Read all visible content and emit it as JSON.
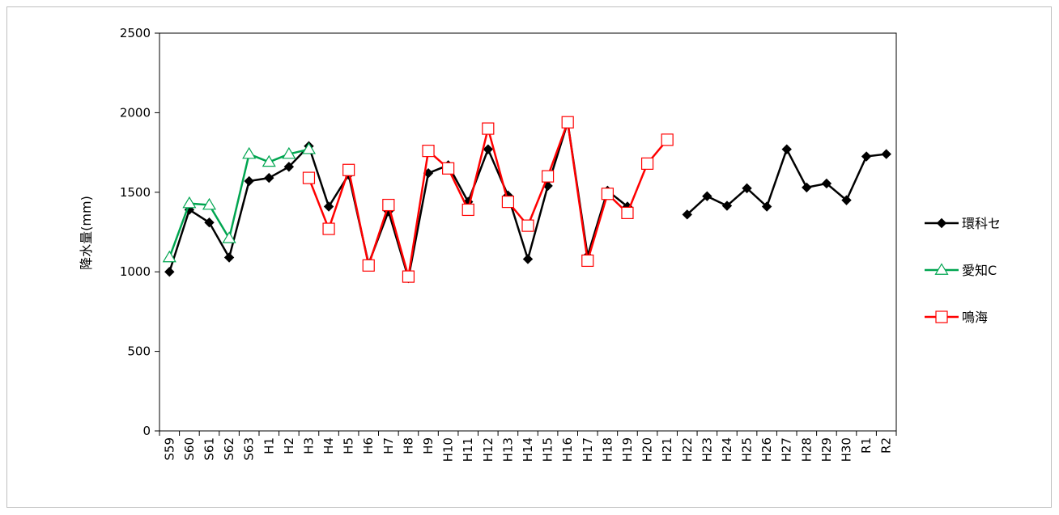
{
  "chart_data": {
    "type": "line",
    "title": "",
    "ylabel": "降水量(mm)",
    "xlabel": "",
    "ylim": [
      0,
      2500
    ],
    "yticks": [
      0,
      500,
      1000,
      1500,
      2000,
      2500
    ],
    "grid": false,
    "legend_position": "right",
    "categories": [
      "S59",
      "S60",
      "S61",
      "S62",
      "S63",
      "H1",
      "H2",
      "H3",
      "H4",
      "H5",
      "H6",
      "H7",
      "H8",
      "H9",
      "H10",
      "H11",
      "H12",
      "H13",
      "H14",
      "H15",
      "H16",
      "H17",
      "H18",
      "H19",
      "H20",
      "H21",
      "H22",
      "H23",
      "H24",
      "H25",
      "H26",
      "H27",
      "H28",
      "H29",
      "H30",
      "R1",
      "R2"
    ],
    "series": [
      {
        "name": "環科セ",
        "color": "#000000",
        "marker": "diamond-filled",
        "values": [
          1000,
          1390,
          1310,
          1090,
          1570,
          1590,
          1660,
          1790,
          1410,
          1610,
          1050,
          1380,
          960,
          1620,
          1670,
          1440,
          1770,
          1480,
          1080,
          1540,
          1940,
          1100,
          1510,
          1410,
          null,
          null,
          1360,
          1475,
          1415,
          1525,
          1410,
          1770,
          1530,
          1555,
          1450,
          1725,
          1740
        ]
      },
      {
        "name": "愛知C",
        "color": "#00a550",
        "marker": "triangle-open",
        "values": [
          1090,
          1430,
          1420,
          1210,
          1740,
          1690,
          1740,
          1770,
          null,
          null,
          null,
          null,
          null,
          null,
          null,
          null,
          null,
          null,
          null,
          null,
          null,
          null,
          null,
          null,
          null,
          null,
          null,
          null,
          null,
          null,
          null,
          null,
          null,
          null,
          null,
          null,
          null
        ]
      },
      {
        "name": "鳴海",
        "color": "#ff0000",
        "marker": "square-open",
        "values": [
          null,
          null,
          null,
          null,
          null,
          null,
          null,
          1590,
          1270,
          1640,
          1040,
          1420,
          970,
          1760,
          1650,
          1390,
          1900,
          1440,
          1290,
          1600,
          1940,
          1070,
          1490,
          1370,
          1680,
          1830,
          null,
          null,
          null,
          null,
          null,
          null,
          null,
          null,
          null,
          null,
          null
        ]
      }
    ]
  }
}
